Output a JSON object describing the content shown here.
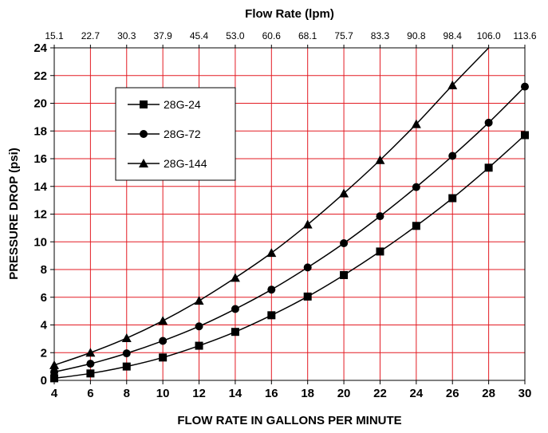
{
  "chart_data": {
    "type": "line",
    "title": "",
    "top_axis_label": "Flow Rate (lpm)",
    "top_ticks": [
      "15.1",
      "22.7",
      "30.3",
      "37.9",
      "45.4",
      "53.0",
      "60.6",
      "68.1",
      "75.7",
      "83.3",
      "90.8",
      "98.4",
      "106.0",
      "113.6"
    ],
    "xlabel": "FLOW RATE IN GALLONS PER MINUTE",
    "ylabel": "PRESSURE DROP (psi)",
    "x_ticks": [
      4,
      6,
      8,
      10,
      12,
      14,
      16,
      18,
      20,
      22,
      24,
      26,
      28,
      30
    ],
    "y_ticks": [
      0,
      2,
      4,
      6,
      8,
      10,
      12,
      14,
      16,
      18,
      20,
      22,
      24
    ],
    "xlim": [
      4,
      30
    ],
    "ylim": [
      0,
      24
    ],
    "grid": true,
    "grid_color": "#e31b23",
    "legend_position": "top-left",
    "series": [
      {
        "name": "28G-24",
        "marker": "square",
        "x": [
          4,
          6,
          8,
          10,
          12,
          14,
          16,
          18,
          20,
          22,
          24,
          26,
          28,
          30
        ],
        "y": [
          0.15,
          0.5,
          1.0,
          1.65,
          2.5,
          3.5,
          4.7,
          6.05,
          7.6,
          9.3,
          11.15,
          13.15,
          15.35,
          17.7
        ]
      },
      {
        "name": "28G-72",
        "marker": "circle",
        "x": [
          4,
          6,
          8,
          10,
          12,
          14,
          16,
          18,
          20,
          22,
          24,
          26,
          28,
          30
        ],
        "y": [
          0.6,
          1.2,
          1.95,
          2.85,
          3.9,
          5.15,
          6.55,
          8.15,
          9.9,
          11.85,
          13.95,
          16.2,
          18.6,
          21.2
        ]
      },
      {
        "name": "28G-144",
        "marker": "triangle",
        "x": [
          4,
          6,
          8,
          10,
          12,
          14,
          16,
          18,
          20,
          22,
          24,
          26
        ],
        "y": [
          1.1,
          2.0,
          3.05,
          4.3,
          5.75,
          7.4,
          9.2,
          11.25,
          13.5,
          15.9,
          18.5,
          21.3
        ],
        "extends_to": [
          28,
          24
        ]
      }
    ]
  }
}
